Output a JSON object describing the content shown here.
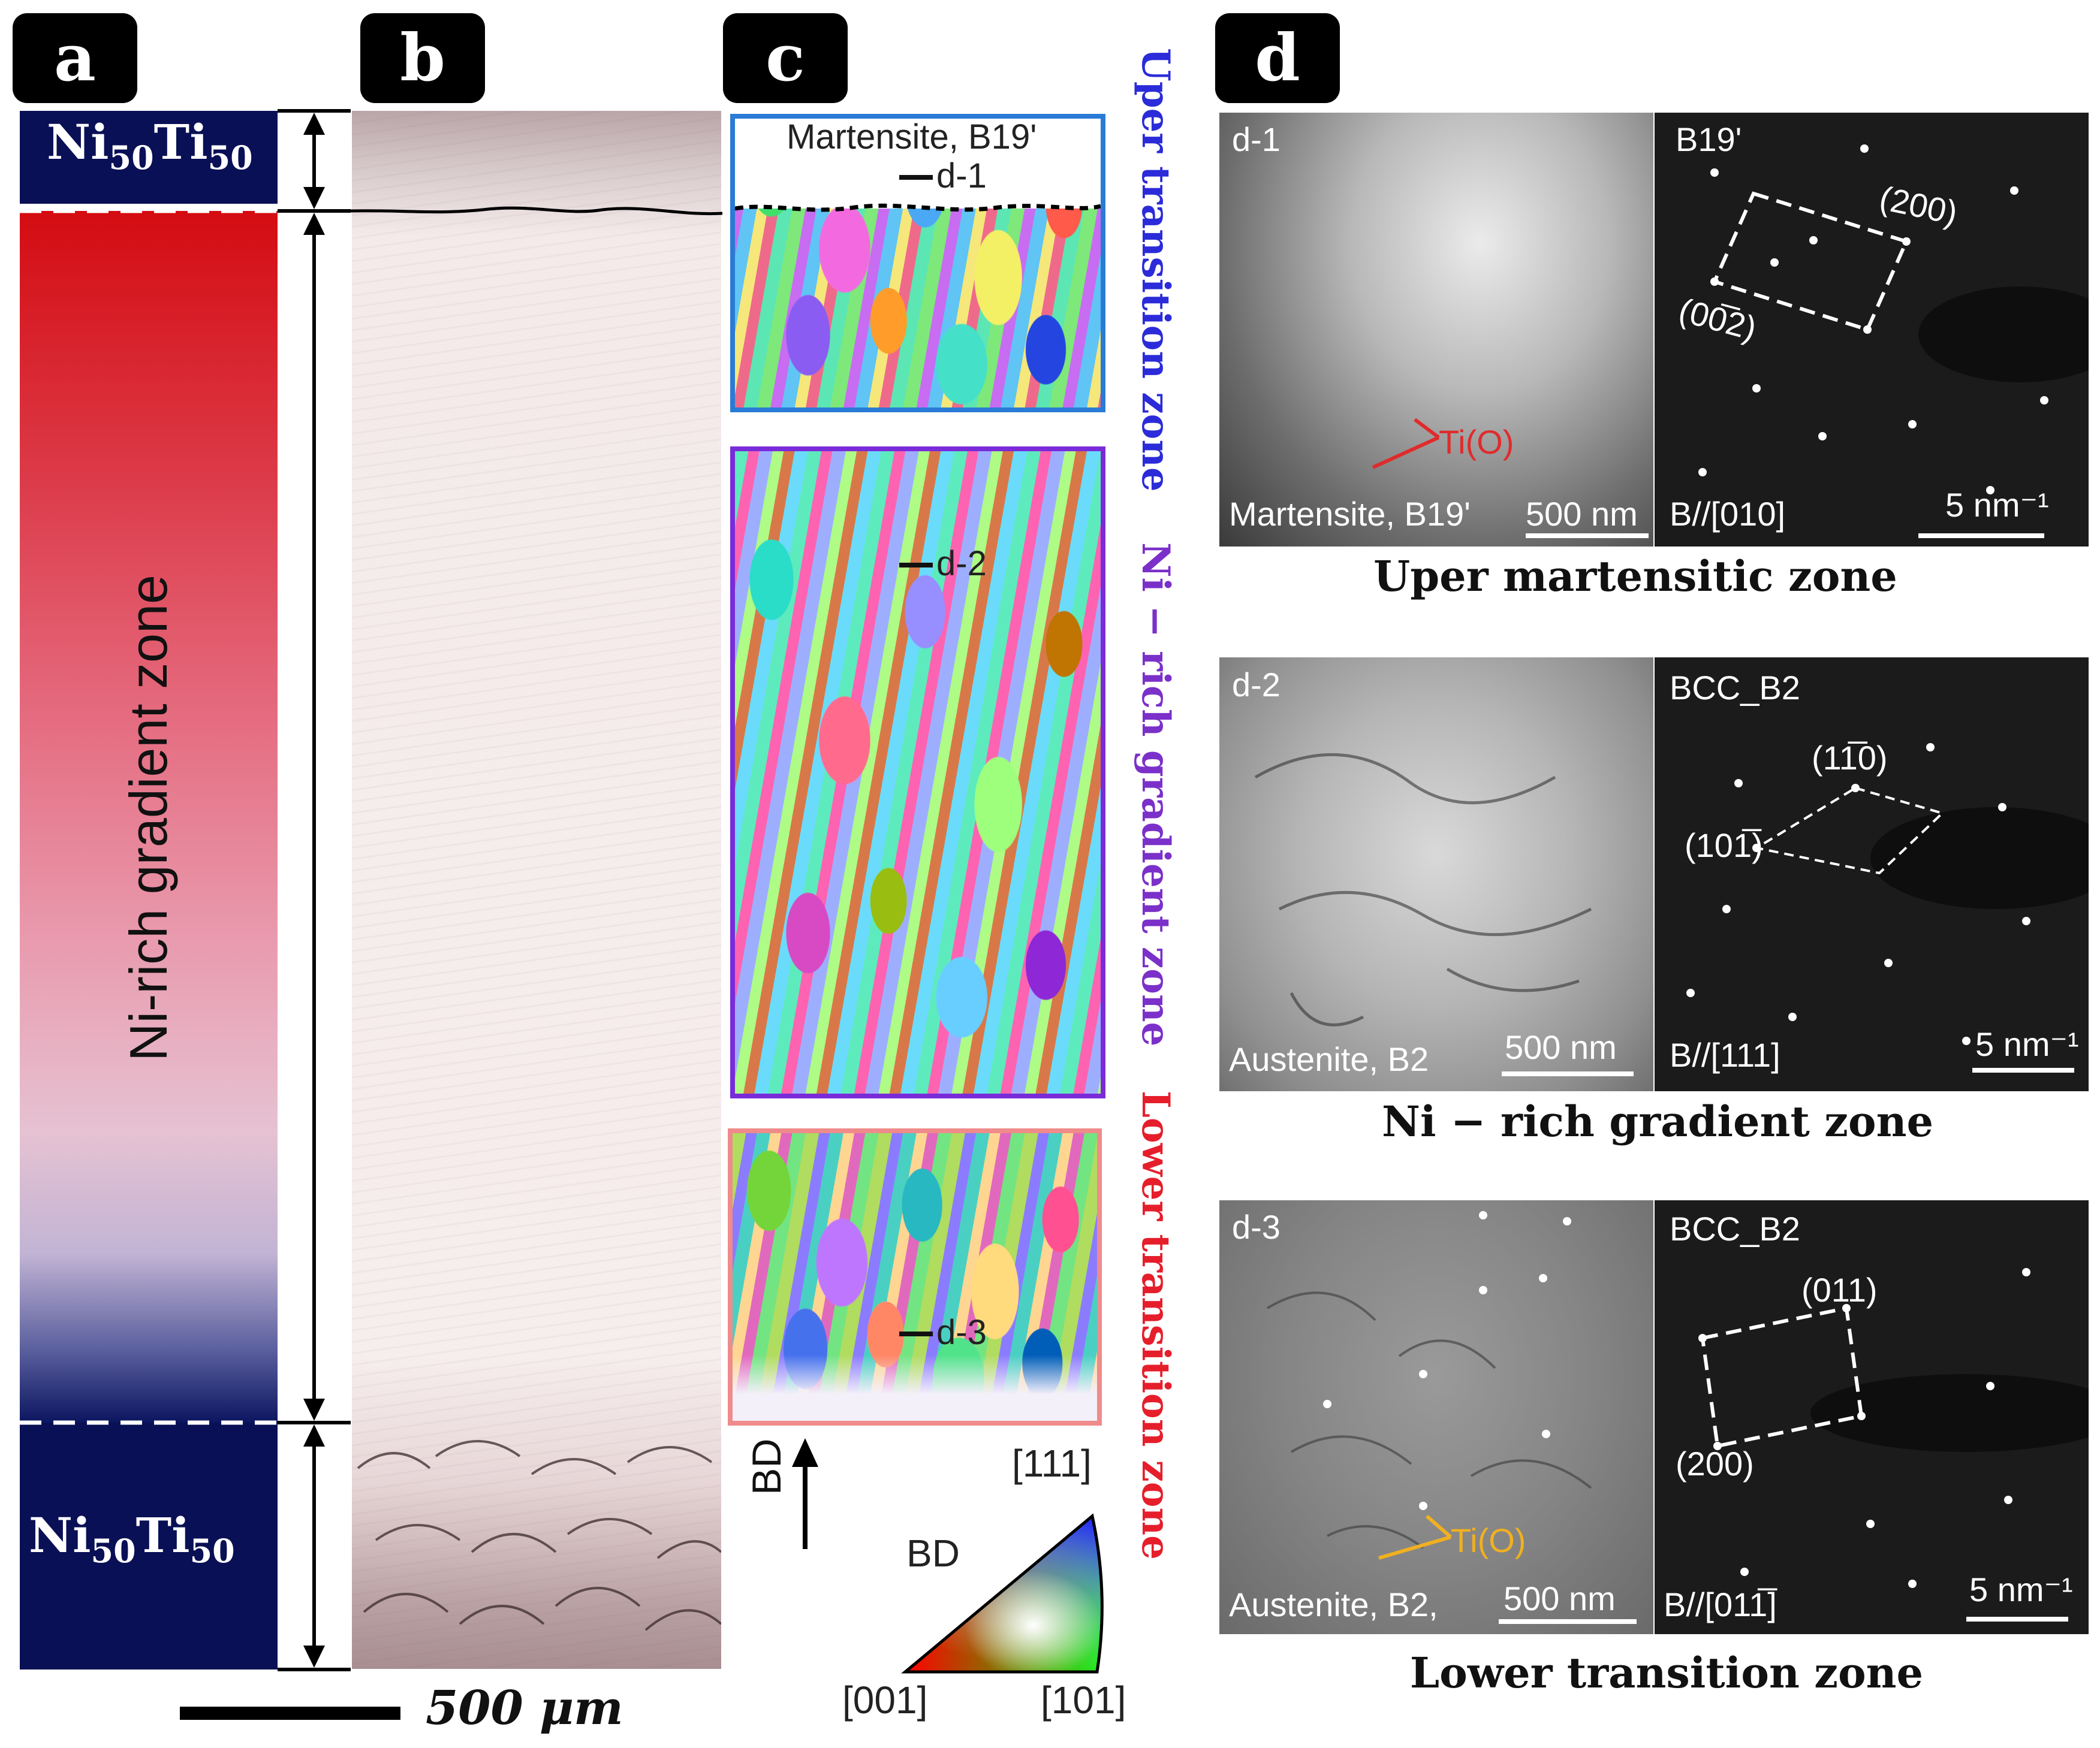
{
  "panel_labels": {
    "a": "a",
    "b": "b",
    "c": "c",
    "d": "d"
  },
  "panel_a": {
    "top_alloy": {
      "base": "Ni",
      "sub1": "50",
      "el2": "Ti",
      "sub2": "50"
    },
    "gradient_label": "Ni-rich  gradient zone",
    "bottom_alloy": {
      "base": "Ni",
      "sub1": "50",
      "el2": "Ti",
      "sub2": "50"
    },
    "colors": {
      "alloy_fill": "#0a1055",
      "gradient_top": "#d40c12",
      "gradient_bottom": "#0c1660"
    }
  },
  "scale_bar": {
    "label": "500 μm"
  },
  "panel_c": {
    "upper_caption": "Martensite, B19'",
    "marker_d1": "d-1",
    "marker_d2": "d-2",
    "marker_d3": "d-3",
    "zones": [
      {
        "text": "Uper transition zone",
        "color": "#2b2bd9"
      },
      {
        "text": "Ni − rich gradient zone",
        "color": "#7b30c9"
      },
      {
        "text": "Lower transition zone",
        "color": "#e61e2b"
      }
    ],
    "bd_label": "BD",
    "legend": {
      "title": "BD",
      "top": "[111]",
      "left": "[001]",
      "right": "[101]"
    }
  },
  "panel_d": [
    {
      "id": "d-1",
      "image_text": "Martensite, B19'",
      "scale": "500 nm",
      "precipitate": "Ti(O)",
      "phase": "B19'",
      "reflections": [
        "(200)",
        "(00̅2)"
      ],
      "zone_axis": "B//[010]",
      "recip_scale": "5 nm⁻¹",
      "caption": "Uper martensitic zone"
    },
    {
      "id": "d-2",
      "image_text": "Austenite, B2",
      "scale": "500 nm",
      "phase": "BCC_B2",
      "reflections": [
        "(11̅0)",
        "(101̅)"
      ],
      "zone_axis": "B//[111]",
      "recip_scale": "5 nm⁻¹",
      "caption": "Ni − rich gradient zone"
    },
    {
      "id": "d-3",
      "image_text": "Austenite, B2,",
      "scale": "500 nm",
      "precipitate": "Ti(O)",
      "phase": "BCC_B2",
      "reflections": [
        "(011)",
        "(200)"
      ],
      "zone_axis": "B//[011̅]",
      "recip_scale": "5 nm⁻¹",
      "caption": "Lower transition zone"
    }
  ]
}
